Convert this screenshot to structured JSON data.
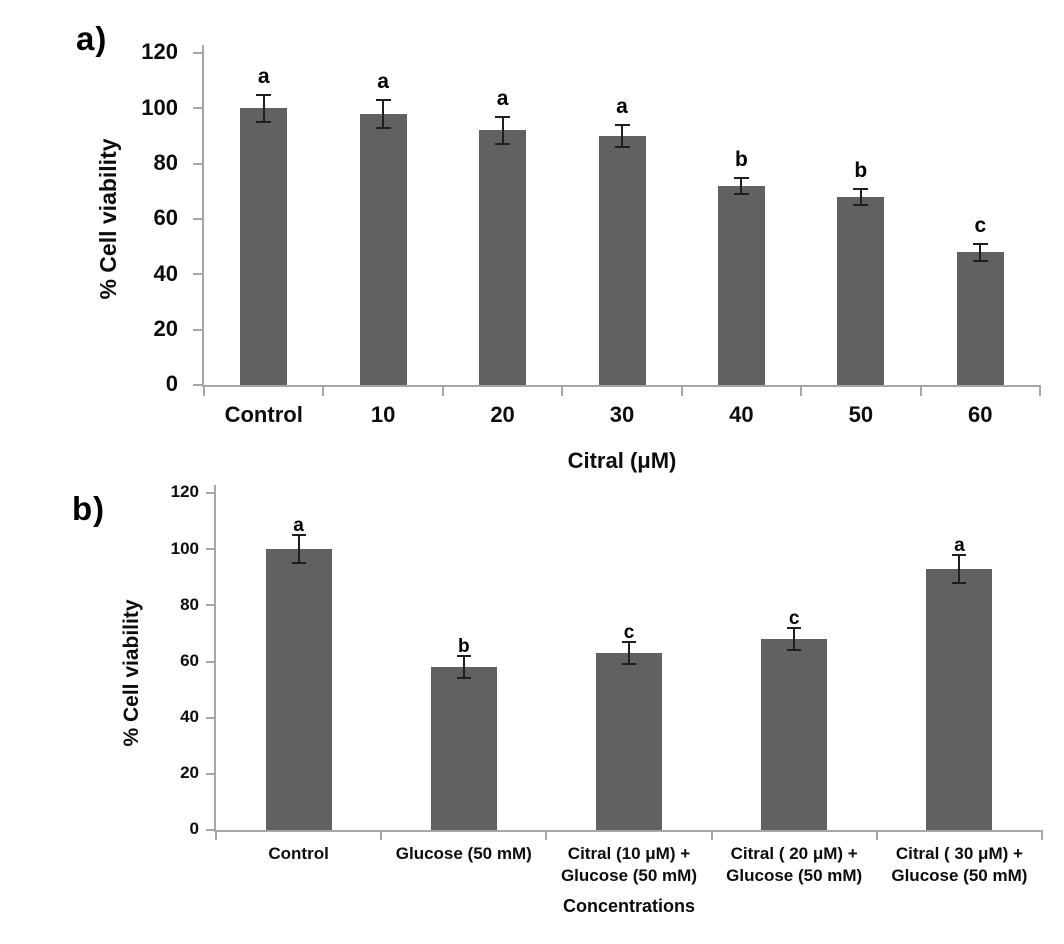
{
  "figure": {
    "background": "#ffffff",
    "bar_color": "#616161",
    "axis_color": "#a6a6a6",
    "error_bar_color": "#1f1f1f",
    "text_color": "#0d0d0d",
    "letter_color": "#000000"
  },
  "chart_data": [
    {
      "type": "bar",
      "panel_label": "a)",
      "title": "",
      "xlabel": "Citral (μM)",
      "ylabel": "% Cell viability",
      "ylim": [
        0,
        120
      ],
      "yticks": [
        0,
        20,
        40,
        60,
        80,
        100,
        120
      ],
      "grid": false,
      "legend": "none",
      "categories": [
        "Control",
        "10",
        "20",
        "30",
        "40",
        "50",
        "60"
      ],
      "values": [
        100,
        98,
        92,
        90,
        72,
        68,
        48
      ],
      "errors": [
        5,
        5,
        5,
        4,
        3,
        3,
        3
      ],
      "significance_letters": [
        "a",
        "a",
        "a",
        "a",
        "b",
        "b",
        "c"
      ]
    },
    {
      "type": "bar",
      "panel_label": "b)",
      "title": "",
      "xlabel": "Concentrations",
      "ylabel": "% Cell viability",
      "ylim": [
        0,
        120
      ],
      "yticks": [
        0,
        20,
        40,
        60,
        80,
        100,
        120
      ],
      "grid": false,
      "legend": "none",
      "categories": [
        [
          "Control"
        ],
        [
          "Glucose (50 mM)"
        ],
        [
          "Citral (10 μM) +",
          "Glucose (50 mM)"
        ],
        [
          "Citral ( 20 μM) +",
          "Glucose (50 mM)"
        ],
        [
          "Citral ( 30 μM) +",
          "Glucose (50 mM)"
        ]
      ],
      "values": [
        100,
        58,
        63,
        68,
        93
      ],
      "errors": [
        5,
        4,
        4,
        4,
        5
      ],
      "significance_letters": [
        "a",
        "b",
        "c",
        "c",
        "a"
      ]
    }
  ]
}
